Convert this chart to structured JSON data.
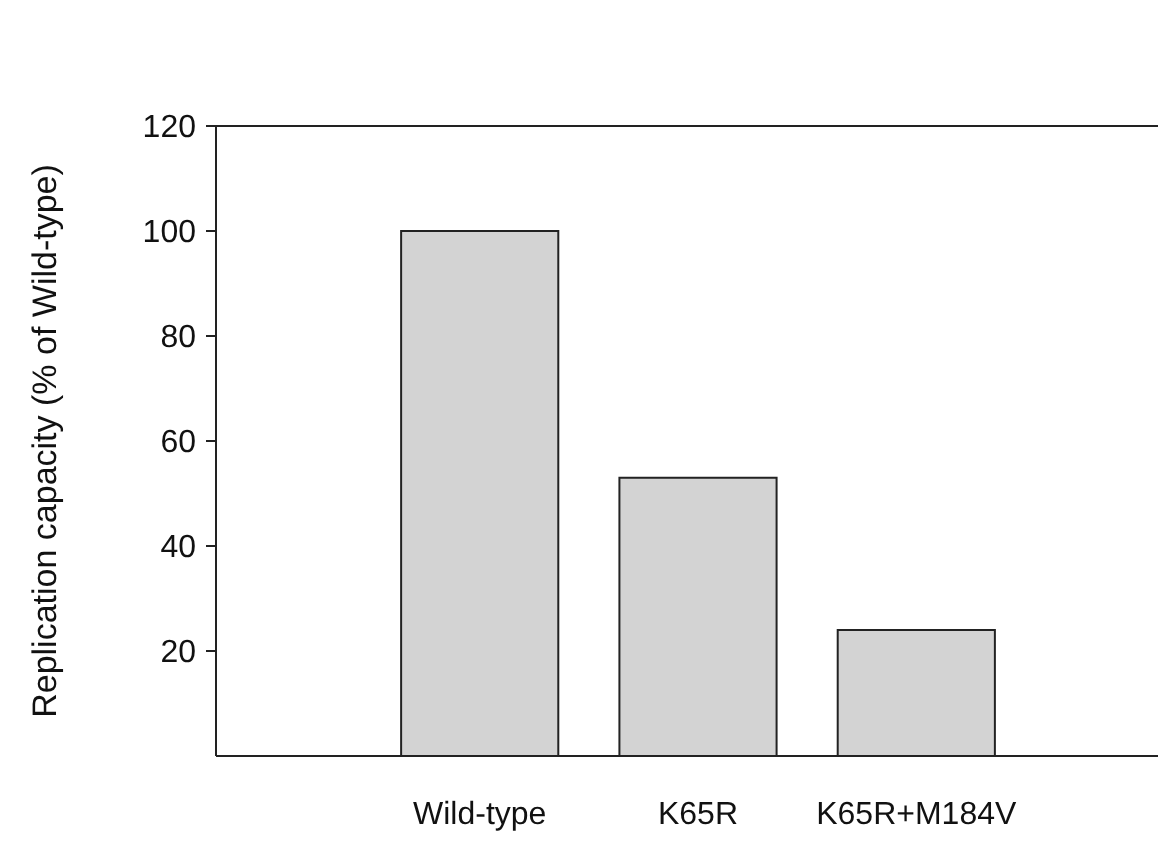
{
  "chart_data": {
    "type": "bar",
    "ylabel": "Replication capacity (% of Wild-type)",
    "categories": [
      "Wild-type",
      "K65R",
      "K65R+M184V"
    ],
    "values": [
      100,
      53,
      24
    ],
    "color": "#d3d3d3",
    "ylim": [
      0,
      120
    ],
    "yticks": [
      20,
      40,
      60,
      80,
      100,
      120
    ],
    "grid": false
  }
}
